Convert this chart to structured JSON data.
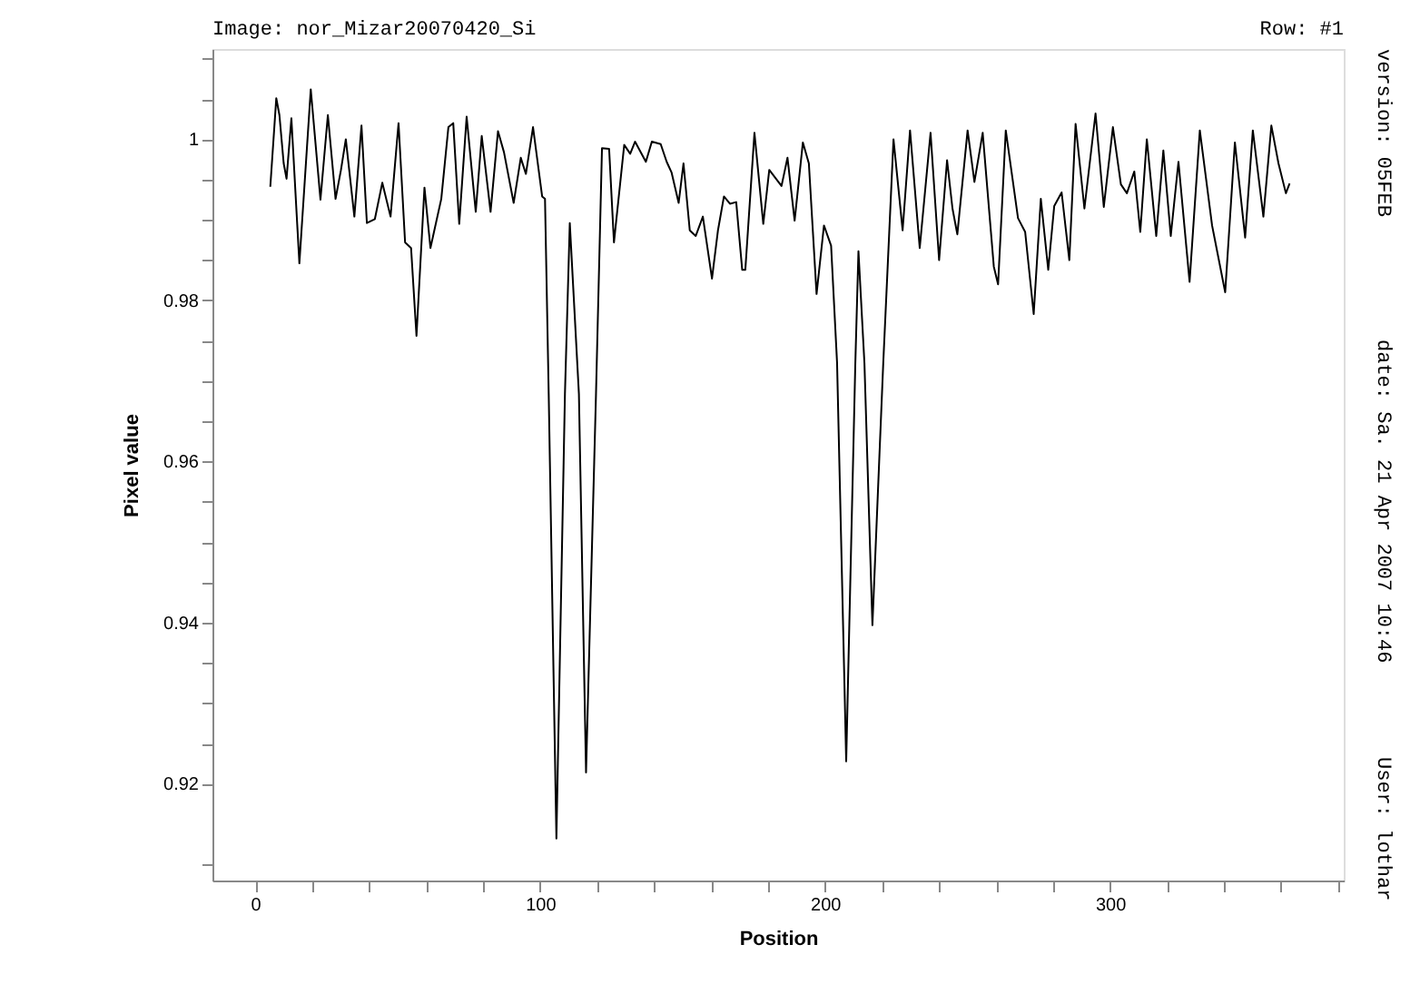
{
  "chart_data": {
    "type": "line",
    "title": "Image:  nor_Mizar20070420_Si",
    "xlabel": "Position",
    "ylabel": "Pixel value",
    "annotations": [
      "Row:  #1",
      "version: 05FEB",
      "date: Sa. 21 Apr 2007 10:46",
      "User: lothar"
    ],
    "x": [
      5.3,
      7.4,
      8.5,
      10,
      11,
      12.7,
      15.5,
      19.5,
      22.9,
      25.5,
      28.2,
      30.1,
      31.8,
      34.8,
      37.3,
      39.2,
      42,
      44.6,
      47.5,
      50.3,
      52.6,
      54.7,
      56.6,
      59.4,
      61.5,
      65.3,
      67.8,
      69.5,
      71.6,
      74.2,
      77.4,
      79.5,
      82.6,
      85.2,
      87.3,
      90.7,
      93.2,
      95,
      97.5,
      100.7,
      101.7,
      103,
      105.7,
      108.7,
      110.4,
      113.6,
      116.1,
      119.6,
      121.7,
      124.2,
      125.9,
      129.5,
      131.6,
      133.3,
      137.1,
      139.2,
      142.3,
      144.4,
      146.1,
      148.6,
      150.3,
      152.5,
      154.6,
      157.1,
      160.3,
      162.4,
      164.5,
      166.6,
      168.8,
      170.9,
      172,
      175.2,
      178.3,
      180.4,
      184.7,
      186.8,
      189.3,
      192.2,
      194.3,
      197,
      199.6,
      202.1,
      204.2,
      207.4,
      210.6,
      211.7,
      213.8,
      216.6,
      220.4,
      224,
      227.2,
      229.8,
      233.2,
      237,
      240,
      242.8,
      244.7,
      246.4,
      250,
      252.4,
      255.3,
      259.2,
      260.7,
      263.4,
      267.7,
      270.2,
      273.2,
      275.7,
      278.3,
      280.4,
      283,
      285.7,
      287.9,
      291,
      294.9,
      297.8,
      301,
      303.8,
      305.9,
      308.5,
      310.6,
      312.9,
      316.2,
      318.7,
      321.3,
      324,
      327.9,
      331.5,
      335.8,
      340.4,
      343.8,
      347.4,
      350.1,
      353.8,
      356.6,
      359.1,
      361.7,
      363
    ],
    "series": [
      {
        "color": "#000000",
        "values": [
          0.9941,
          1.0051,
          1.003,
          0.997,
          0.9951,
          1.0026,
          0.9846,
          1.0062,
          0.9925,
          1.003,
          0.9926,
          0.9962,
          1.0,
          0.9904,
          1.0017,
          0.9896,
          0.9901,
          0.9946,
          0.9904,
          1.002,
          0.9872,
          0.9865,
          0.9756,
          0.994,
          0.9865,
          0.9926,
          1.0015,
          1.002,
          0.9895,
          1.0028,
          0.991,
          1.0004,
          0.991,
          1.001,
          0.9984,
          0.9921,
          0.9977,
          0.9957,
          1.0015,
          0.9929,
          0.9926,
          0.9684,
          0.9132,
          0.9684,
          0.9896,
          0.9684,
          0.9214,
          0.9684,
          0.9989,
          0.9988,
          0.9872,
          0.9993,
          0.9982,
          0.9997,
          0.9972,
          0.9997,
          0.9994,
          0.9972,
          0.9959,
          0.9921,
          0.997,
          0.9887,
          0.988,
          0.9904,
          0.9827,
          0.9887,
          0.9929,
          0.992,
          0.9922,
          0.9838,
          0.9838,
          1.0008,
          0.9895,
          0.9962,
          0.9942,
          0.9977,
          0.9899,
          0.9996,
          0.997,
          0.9808,
          0.9893,
          0.9868,
          0.9722,
          0.9228,
          0.9722,
          0.9861,
          0.9722,
          0.9397,
          0.9722,
          1.0,
          0.9887,
          1.0011,
          0.9865,
          1.0008,
          0.985,
          0.9974,
          0.9914,
          0.9882,
          1.0011,
          0.9947,
          1.0008,
          0.9842,
          0.982,
          1.0011,
          0.9902,
          0.9885,
          0.9783,
          0.9926,
          0.9838,
          0.9917,
          0.9934,
          0.985,
          1.0019,
          0.9914,
          1.0032,
          0.9916,
          1.0015,
          0.9944,
          0.9933,
          0.996,
          0.9885,
          1.0,
          0.988,
          0.9986,
          0.988,
          0.9972,
          0.9823,
          1.0011,
          0.9893,
          0.981,
          0.9996,
          0.9878,
          1.0011,
          0.9904,
          1.0017,
          0.997,
          0.9933,
          0.9945
        ]
      }
    ],
    "xlim": [
      -15,
      382
    ],
    "xticks": [
      0,
      {
        "value": 20,
        "label": null
      },
      {
        "value": 40,
        "label": null
      },
      {
        "value": 60,
        "label": null
      },
      {
        "value": 80,
        "label": null
      },
      100,
      {
        "value": 120,
        "label": null
      },
      {
        "value": 140,
        "label": null
      },
      {
        "value": 160,
        "label": null
      },
      {
        "value": 180,
        "label": null
      },
      200,
      {
        "value": 220,
        "label": null
      },
      {
        "value": 240,
        "label": null
      },
      {
        "value": 260,
        "label": null
      },
      {
        "value": 280,
        "label": null
      },
      300,
      {
        "value": 320,
        "label": null
      },
      {
        "value": 340,
        "label": null
      },
      {
        "value": 360,
        "label": null
      },
      {
        "value": 380,
        "label": null
      }
    ],
    "ylim": [
      0.908,
      1.0112
    ],
    "yticks": [
      {
        "value": 0.91,
        "label": null
      },
      0.92,
      {
        "value": 0.925,
        "label": null
      },
      {
        "value": 0.93,
        "label": null
      },
      {
        "value": 0.935,
        "label": null
      },
      0.94,
      {
        "value": 0.945,
        "label": null
      },
      {
        "value": 0.95,
        "label": null
      },
      {
        "value": 0.955,
        "label": null
      },
      0.96,
      {
        "value": 0.965,
        "label": null
      },
      {
        "value": 0.97,
        "label": null
      },
      {
        "value": 0.975,
        "label": null
      },
      0.98,
      {
        "value": 0.985,
        "label": null
      },
      {
        "value": 0.99,
        "label": null
      },
      {
        "value": 0.995,
        "label": null
      },
      1,
      {
        "value": 1.005,
        "label": null
      },
      {
        "value": 1.01,
        "label": null
      }
    ],
    "grid": false,
    "marker": "none",
    "line_style": "solid"
  }
}
